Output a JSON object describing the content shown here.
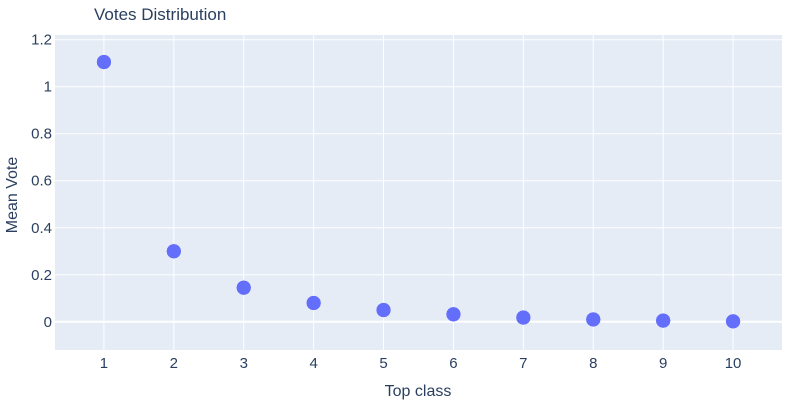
{
  "chart_data": {
    "type": "scatter",
    "title": "Votes Distribution",
    "xlabel": "Top class",
    "ylabel": "Mean Vote",
    "x": [
      1,
      2,
      3,
      4,
      5,
      6,
      7,
      8,
      9,
      10
    ],
    "y": [
      1.105,
      0.3,
      0.145,
      0.08,
      0.05,
      0.032,
      0.018,
      0.01,
      0.005,
      0.002
    ],
    "xlim": [
      0.3,
      10.7
    ],
    "ylim": [
      -0.12,
      1.22
    ],
    "xticks": [
      "1",
      "2",
      "3",
      "4",
      "5",
      "6",
      "7",
      "8",
      "9",
      "10"
    ],
    "yticks": [
      "0",
      "0.2",
      "0.4",
      "0.6",
      "0.8",
      "1",
      "1.2"
    ],
    "grid": true,
    "colors": {
      "plot_background": "#e5ecf6",
      "grid": "#ffffff",
      "marker": "#636efa",
      "text": "#2a3f5f"
    }
  }
}
